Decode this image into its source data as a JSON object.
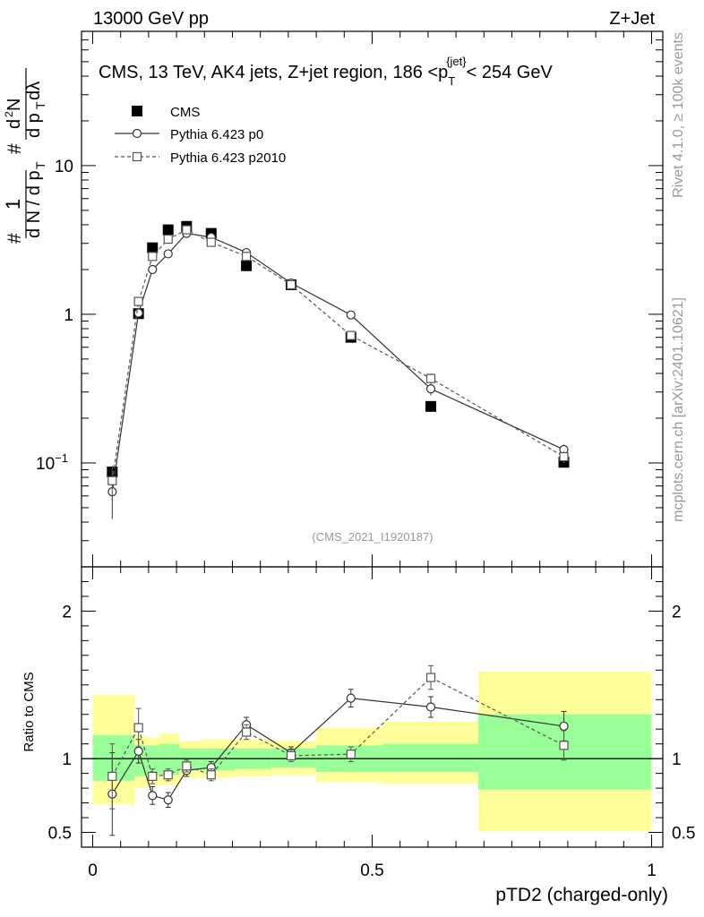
{
  "header": {
    "left": "13000 GeV pp",
    "right": "Z+Jet"
  },
  "side_labels": {
    "rivet": "Rivet 4.1.0, ≥ 100k events",
    "mcplots": "mcplots.cern.ch [arXiv:2401.10621]"
  },
  "chart_data": {
    "type": "scatter",
    "title": "CMS, 13 TeV, AK4 jets, Z+jet region, 186 <p_T^{jet}< 254 GeV",
    "title_parts": {
      "main": "CMS, 13 TeV, AK4 jets, Z+jet region, 186 <p",
      "sub": "T",
      "sup": "{jet}",
      "tail": "< 254 GeV"
    },
    "analysis_id": "(CMS_2021_I1920187)",
    "xlabel": "pTD2 (charged-only)",
    "ylabel": "1/dN/dp_T  d²N/dp_T dλ",
    "ylabel_parts": {
      "frac1_num": "1",
      "frac1_den": "d N / d p",
      "frac2_num": "d",
      "frac2_num_sup": "2",
      "frac2_num_tail": "N",
      "frac2_den": "d p",
      "frac2_den_tail": " dλ",
      "sub": "T",
      "hash": "#"
    },
    "ratio_ylabel": "Ratio to CMS",
    "xlim": [
      -0.02,
      1.02
    ],
    "ylim": [
      0.02,
      80
    ],
    "yscale": "log",
    "ratio_ylim": [
      0.4,
      2.3
    ],
    "x_ticks": [
      {
        "v": 0,
        "label": "0"
      },
      {
        "v": 0.5,
        "label": "0.5"
      },
      {
        "v": 1,
        "label": "1"
      }
    ],
    "y_ticks": [
      {
        "v": 0.1,
        "label": "10",
        "exp": "−1"
      },
      {
        "v": 1,
        "label": "1",
        "exp": ""
      },
      {
        "v": 10,
        "label": "10",
        "exp": ""
      }
    ],
    "ratio_ticks": [
      {
        "v": 0.5,
        "label": "0.5"
      },
      {
        "v": 1,
        "label": "1"
      },
      {
        "v": 2,
        "label": "2"
      }
    ],
    "bins": [
      {
        "lo": 0.0,
        "hi": 0.075,
        "tot_lo": 0.69,
        "tot_hi": 1.43,
        "stat_lo": 0.85,
        "stat_hi": 1.16
      },
      {
        "lo": 0.075,
        "hi": 0.095,
        "tot_lo": 0.8,
        "tot_hi": 1.16,
        "stat_lo": 0.88,
        "stat_hi": 1.09
      },
      {
        "lo": 0.095,
        "hi": 0.12,
        "tot_lo": 0.82,
        "tot_hi": 1.14,
        "stat_lo": 0.89,
        "stat_hi": 1.09
      },
      {
        "lo": 0.12,
        "hi": 0.155,
        "tot_lo": 0.82,
        "tot_hi": 1.17,
        "stat_lo": 0.89,
        "stat_hi": 1.1
      },
      {
        "lo": 0.155,
        "hi": 0.195,
        "tot_lo": 0.87,
        "tot_hi": 1.12,
        "stat_lo": 0.92,
        "stat_hi": 1.07
      },
      {
        "lo": 0.195,
        "hi": 0.255,
        "tot_lo": 0.87,
        "tot_hi": 1.13,
        "stat_lo": 0.92,
        "stat_hi": 1.07
      },
      {
        "lo": 0.255,
        "hi": 0.32,
        "tot_lo": 0.88,
        "tot_hi": 1.13,
        "stat_lo": 0.93,
        "stat_hi": 1.07
      },
      {
        "lo": 0.32,
        "hi": 0.4,
        "tot_lo": 0.89,
        "tot_hi": 1.12,
        "stat_lo": 0.94,
        "stat_hi": 1.07
      },
      {
        "lo": 0.4,
        "hi": 0.52,
        "tot_lo": 0.84,
        "tot_hi": 1.21,
        "stat_lo": 0.91,
        "stat_hi": 1.09
      },
      {
        "lo": 0.52,
        "hi": 0.69,
        "tot_lo": 0.83,
        "tot_hi": 1.25,
        "stat_lo": 0.91,
        "stat_hi": 1.1
      },
      {
        "lo": 0.69,
        "hi": 1.0,
        "tot_lo": 0.51,
        "tot_hi": 1.59,
        "stat_lo": 0.79,
        "stat_hi": 1.3
      }
    ],
    "series": [
      {
        "name": "CMS",
        "style": "data",
        "color": "#000000",
        "x": [
          0.035,
          0.082,
          0.107,
          0.135,
          0.168,
          0.212,
          0.275,
          0.355,
          0.462,
          0.605,
          0.843
        ],
        "y": [
          0.087,
          1.01,
          2.8,
          3.7,
          3.9,
          3.5,
          2.12,
          1.58,
          0.7,
          0.24,
          0.101
        ],
        "ratio": [
          1,
          1,
          1,
          1,
          1,
          1,
          1,
          1,
          1,
          1,
          1
        ]
      },
      {
        "name": "Pythia 6.423 p0",
        "style": "circle-solid",
        "color": "#333333",
        "x": [
          0.035,
          0.082,
          0.107,
          0.135,
          0.168,
          0.212,
          0.275,
          0.355,
          0.462,
          0.605,
          0.843
        ],
        "y": [
          0.064,
          1.02,
          2.0,
          2.55,
          3.5,
          3.3,
          2.6,
          1.62,
          0.99,
          0.315,
          0.123
        ],
        "y_err": [
          0.022,
          0.05,
          0.1,
          0.1,
          0.1,
          0.1,
          0.08,
          0.06,
          0.05,
          0.03,
          0.01
        ],
        "ratio": [
          0.76,
          1.05,
          0.75,
          0.72,
          0.92,
          0.94,
          1.23,
          1.04,
          1.41,
          1.35,
          1.22
        ],
        "ratio_err": [
          0.28,
          0.08,
          0.06,
          0.05,
          0.04,
          0.04,
          0.05,
          0.04,
          0.06,
          0.07,
          0.1
        ]
      },
      {
        "name": "Pythia 6.423 p2010",
        "style": "square-dashed",
        "color": "#555555",
        "x": [
          0.035,
          0.082,
          0.107,
          0.135,
          0.168,
          0.212,
          0.275,
          0.355,
          0.462,
          0.605,
          0.843
        ],
        "y": [
          0.076,
          1.22,
          2.45,
          3.2,
          3.7,
          3.05,
          2.45,
          1.58,
          0.72,
          0.37,
          0.11
        ],
        "y_err": [
          0.02,
          0.05,
          0.1,
          0.1,
          0.1,
          0.1,
          0.08,
          0.06,
          0.04,
          0.03,
          0.01
        ],
        "ratio": [
          0.88,
          1.21,
          0.88,
          0.89,
          0.95,
          0.89,
          1.18,
          1.02,
          1.03,
          1.55,
          1.09
        ],
        "ratio_err": [
          0.22,
          0.13,
          0.05,
          0.04,
          0.04,
          0.04,
          0.05,
          0.04,
          0.05,
          0.08,
          0.1
        ]
      }
    ]
  }
}
